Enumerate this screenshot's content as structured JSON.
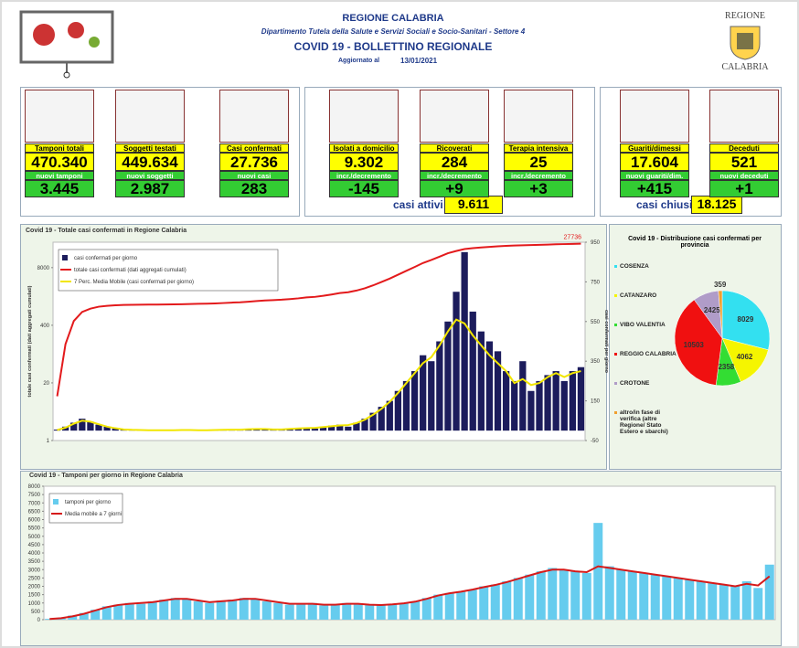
{
  "header": {
    "region": "REGIONE CALABRIA",
    "department": "Dipartimento Tutela della Salute e Servizi Sociali e Socio-Sanitari - Settore 4",
    "title": "COVID 19 - BOLLETTINO REGIONALE",
    "updated_label": "Aggiornato al",
    "updated_date": "13/01/2021",
    "logo_top": "REGIONE",
    "logo_bottom": "CALABRIA"
  },
  "stats": [
    {
      "label": "Tamponi totali",
      "value": "470.340",
      "sub_label": "nuovi tamponi",
      "sub_value": "3.445"
    },
    {
      "label": "Soggetti testati",
      "value": "449.634",
      "sub_label": "nuovi soggetti testati",
      "sub_value": "2.987"
    },
    {
      "label": "Casi confermati",
      "value": "27.736",
      "sub_label": "nuovi casi",
      "sub_value": "283"
    },
    {
      "label": "Isolati a domicilio",
      "value": "9.302",
      "sub_label": "incr./decremento",
      "sub_value": "-145"
    },
    {
      "label": "Ricoverati",
      "value": "284",
      "sub_label": "incr./decremento",
      "sub_value": "+9"
    },
    {
      "label": "Terapia intensiva",
      "value": "25",
      "sub_label": "incr./decremento",
      "sub_value": "+3"
    },
    {
      "label": "Guariti/dimessi",
      "value": "17.604",
      "sub_label": "nuovi guariti/dim.",
      "sub_value": "+415"
    },
    {
      "label": "Deceduti",
      "value": "521",
      "sub_label": "nuovi deceduti",
      "sub_value": "+1"
    }
  ],
  "totals": {
    "active_label": "casi attivi",
    "active_value": "9.611",
    "closed_label": "casi chiusi",
    "closed_value": "18.125"
  },
  "chart_data": [
    {
      "type": "bar",
      "title": "Covid 19 - Totale casi confermati in Regione Calabria",
      "ylabel": "totale casi confermati (dati aggregati cumulati)",
      "y2label": "casi confermati per giorno",
      "log_scale": true,
      "ylim": [
        1,
        30000
      ],
      "yticks": [
        1,
        20,
        400,
        8000
      ],
      "y2lim": [
        -50,
        950
      ],
      "y2ticks": [
        -50,
        150,
        350,
        550,
        750,
        950
      ],
      "annotation": "27736",
      "legend": "upper left",
      "series": [
        {
          "name": "casi confermati per giorno",
          "type": "bar",
          "axis": "y2",
          "color": "#1c1c5c",
          "values": [
            5,
            20,
            40,
            60,
            45,
            30,
            20,
            10,
            5,
            3,
            2,
            2,
            1,
            2,
            2,
            3,
            3,
            2,
            2,
            3,
            5,
            5,
            3,
            8,
            10,
            8,
            5,
            5,
            10,
            12,
            15,
            10,
            20,
            25,
            30,
            20,
            40,
            60,
            90,
            120,
            150,
            200,
            250,
            300,
            380,
            350,
            450,
            550,
            700,
            900,
            600,
            500,
            450,
            400,
            300,
            250,
            350,
            200,
            250,
            280,
            300,
            250,
            300,
            320
          ]
        },
        {
          "name": "totale casi confermati (dati aggregati cumulati)",
          "type": "line",
          "color": "#e31a1c",
          "values": [
            10,
            150,
            500,
            800,
            950,
            1050,
            1100,
            1130,
            1150,
            1160,
            1165,
            1170,
            1175,
            1180,
            1185,
            1195,
            1210,
            1220,
            1230,
            1245,
            1270,
            1300,
            1320,
            1360,
            1410,
            1450,
            1480,
            1510,
            1560,
            1620,
            1700,
            1750,
            1850,
            1980,
            2130,
            2230,
            2430,
            2730,
            3180,
            3780,
            4530,
            5530,
            6780,
            8280,
            10180,
            11930,
            14180,
            16930,
            19000,
            21000,
            22000,
            22800,
            23500,
            24200,
            24800,
            25200,
            25600,
            25900,
            26200,
            26500,
            26900,
            27200,
            27500,
            27736
          ]
        },
        {
          "name": "7 Perc. Media Mobile (casi confermati per giorno)",
          "type": "line",
          "axis": "y2",
          "color": "#f2e600",
          "values": [
            3,
            15,
            35,
            50,
            45,
            32,
            20,
            12,
            6,
            4,
            3,
            2,
            2,
            2,
            2,
            3,
            3,
            2,
            2,
            3,
            4,
            5,
            5,
            7,
            8,
            8,
            6,
            6,
            9,
            11,
            13,
            14,
            18,
            22,
            26,
            28,
            38,
            55,
            80,
            110,
            145,
            190,
            240,
            290,
            340,
            370,
            430,
            500,
            560,
            540,
            480,
            430,
            380,
            340,
            300,
            240,
            260,
            230,
            240,
            270,
            290,
            270,
            290,
            300
          ]
        }
      ]
    },
    {
      "type": "pie",
      "title": "Covid 19 - Distribuzione casi confermati per provincia",
      "categories": [
        "COSENZA",
        "CATANZARO",
        "VIBO VALENTIA",
        "REGGIO CALABRIA",
        "CROTONE",
        "altro/in fase di verifica (altre Regione/ Stato Estero e sbarchi)"
      ],
      "values": [
        8029,
        4062,
        2358,
        10503,
        2425,
        359
      ],
      "colors": [
        "#33e0f0",
        "#f5f500",
        "#33dd33",
        "#f01010",
        "#b09cc8",
        "#f0a030"
      ]
    },
    {
      "type": "bar",
      "title": "Covid 19 - Tamponi per giorno in Regione Calabria",
      "ylim": [
        0,
        8000
      ],
      "yticks": [
        0,
        500,
        1000,
        1500,
        2000,
        2500,
        3000,
        3500,
        4000,
        4500,
        5000,
        5500,
        6000,
        6500,
        7000,
        7500,
        8000
      ],
      "legend": "upper left",
      "series": [
        {
          "name": "tamponi per giorno",
          "type": "bar",
          "color": "#66ccee",
          "values": [
            50,
            100,
            250,
            400,
            600,
            800,
            900,
            1000,
            950,
            1100,
            1200,
            1300,
            1250,
            1100,
            1000,
            1150,
            1200,
            1300,
            1250,
            1100,
            1000,
            900,
            950,
            1000,
            850,
            900,
            1000,
            950,
            900,
            850,
            950,
            1000,
            1100,
            1300,
            1500,
            1600,
            1700,
            1800,
            2000,
            2100,
            2300,
            2500,
            2700,
            2900,
            3100,
            3000,
            2900,
            2800,
            5800,
            3200,
            3000,
            2900,
            2800,
            2700,
            2600,
            2500,
            2400,
            2300,
            2200,
            2100,
            2000,
            2300,
            1900,
            3300
          ]
        },
        {
          "name": "Media mobile a 7 giorni",
          "type": "line",
          "color": "#d61a1a",
          "values": [
            40,
            90,
            200,
            350,
            550,
            750,
            880,
            950,
            1000,
            1050,
            1150,
            1250,
            1250,
            1150,
            1050,
            1100,
            1150,
            1250,
            1250,
            1150,
            1050,
            950,
            950,
            950,
            900,
            900,
            950,
            950,
            900,
            880,
            920,
            980,
            1080,
            1250,
            1450,
            1580,
            1680,
            1800,
            1950,
            2080,
            2250,
            2450,
            2650,
            2850,
            3000,
            3000,
            2900,
            2850,
            3200,
            3100,
            3000,
            2900,
            2800,
            2700,
            2600,
            2500,
            2400,
            2300,
            2200,
            2100,
            2000,
            2150,
            2050,
            2600
          ]
        }
      ]
    }
  ]
}
